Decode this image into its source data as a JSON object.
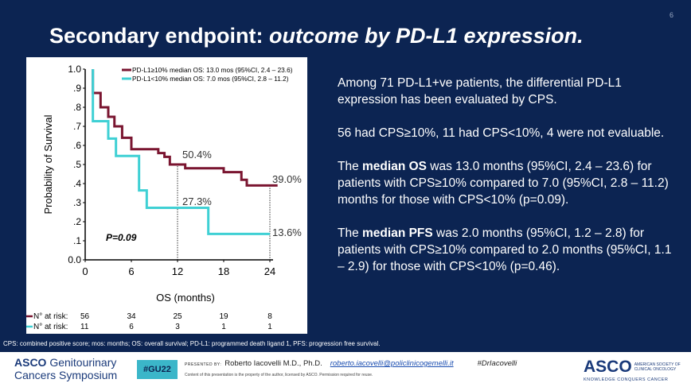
{
  "slide_number": "6",
  "title": {
    "main": "Secondary endpoint: ",
    "italic": "outcome by PD-L1 expression."
  },
  "chart_data": {
    "type": "line",
    "subtype": "kaplan-meier step",
    "xlabel": "OS (months)",
    "ylabel": "Probability of Survival",
    "xlim": [
      0,
      24
    ],
    "ylim": [
      0,
      1
    ],
    "x_ticks": [
      "0",
      "6",
      "12",
      "18",
      "24"
    ],
    "y_ticks": [
      "0.0",
      ".1",
      ".2",
      ".3",
      ".4",
      ".5",
      ".6",
      ".7",
      ".8",
      ".9",
      "1.0"
    ],
    "series": [
      {
        "name": "PD-L1≥10% median OS: 13.0 mos (95%CI, 2.4 – 23.6)",
        "color": "#7a1530",
        "steps": [
          [
            1,
            1.0
          ],
          [
            1,
            0.875
          ],
          [
            2,
            0.8
          ],
          [
            3,
            0.75
          ],
          [
            3.8,
            0.7
          ],
          [
            4.8,
            0.64
          ],
          [
            6,
            0.58
          ],
          [
            9.5,
            0.56
          ],
          [
            10.3,
            0.54
          ],
          [
            11,
            0.5
          ],
          [
            13,
            0.48
          ],
          [
            18,
            0.46
          ],
          [
            20.3,
            0.42
          ],
          [
            21,
            0.39
          ],
          [
            25,
            0.39
          ]
        ]
      },
      {
        "name": "PD-L1<10% median OS: 7.0 mos (95%CI, 2.8 – 11.2)",
        "color": "#3fd0d4",
        "steps": [
          [
            1,
            1.0
          ],
          [
            1,
            0.727
          ],
          [
            3,
            0.636
          ],
          [
            4,
            0.545
          ],
          [
            7,
            0.364
          ],
          [
            8,
            0.273
          ],
          [
            16,
            0.136
          ],
          [
            24,
            0.136
          ]
        ]
      }
    ],
    "annotations": [
      "50.4%",
      "39.0%",
      "27.3%",
      "13.6%",
      "P=0.09"
    ],
    "reference_lines_x": [
      12,
      24
    ],
    "risk_table": {
      "label": "N° at risk:",
      "rows": [
        [
          "56",
          "34",
          "25",
          "19",
          "8"
        ],
        [
          "11",
          "6",
          "3",
          "1",
          "1"
        ]
      ]
    },
    "legend_placement": "top-right"
  },
  "body": {
    "p1": "Among 71 PD-L1+ve patients, the differential PD-L1 expression has been evaluated by CPS.",
    "p2": "56 had CPS≥10%, 11 had CPS<10%, 4 were not evaluable.",
    "p3a": "The ",
    "p3b": "median OS",
    "p3c": " was 13.0 months (95%CI, 2.4 – 23.6) for patients with CPS≥10% compared to 7.0 (95%CI, 2.8 – 11.2) months for those with CPS<10% (p=0.09).",
    "p4a": "The ",
    "p4b": "median PFS",
    "p4c": " was 2.0 months (95%CI, 1.2 – 2.8) for patients with CPS≥10% compared to 2.0 months (95%CI, 1.1 – 2.9) for those with CPS<10% (p=0.46)."
  },
  "caption": "CPS: combined positive score; mos: months; OS: overall survival; PD-L1: programmed death ligand 1, PFS: progression free survival.",
  "footer": {
    "asco_gu_1": "ASCO",
    "asco_gu_2": " Genitourinary",
    "asco_gu_3": "Cancers Symposium",
    "hashtag": "#GU22",
    "presented_by": "PRESENTED BY:",
    "presenter": "Roberto Iacovelli M.D., Ph.D.",
    "email": "roberto.iacovelli@policlinicogemelli.it",
    "handle": "#DrIacovelli",
    "notice": "Content of this presentation is the property of the author, licensed by ASCO. Permission required for reuse.",
    "asco": "ASCO",
    "asco_sub1": "AMERICAN SOCIETY OF",
    "asco_sub2": "CLINICAL ONCOLOGY",
    "asco_tag": "KNOWLEDGE CONQUERS CANCER"
  }
}
